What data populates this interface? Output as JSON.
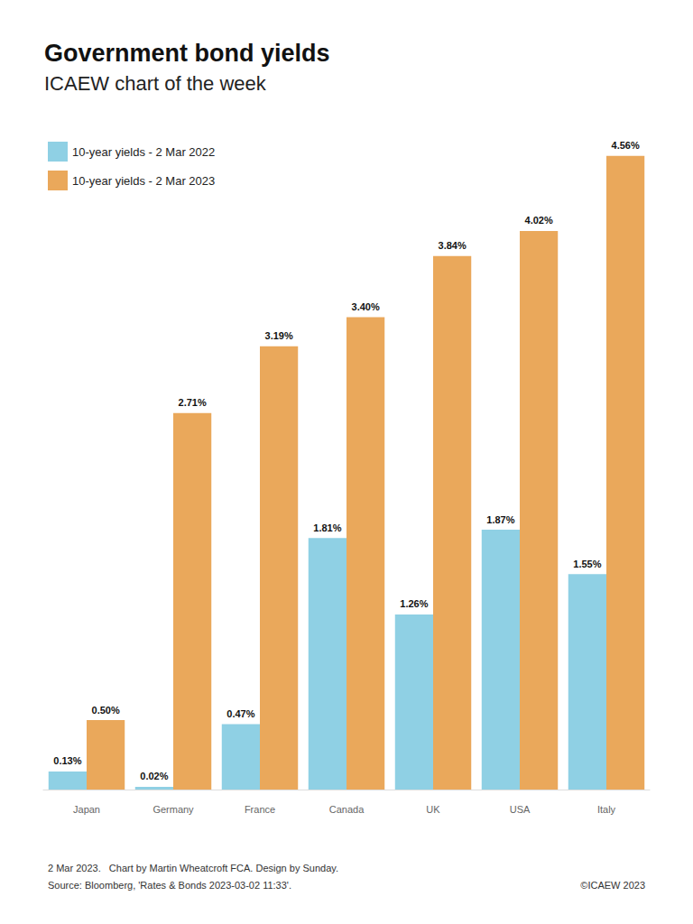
{
  "chart_data": {
    "type": "bar",
    "title": "Government bond yields",
    "subtitle": "ICAEW chart of the week",
    "categories": [
      "Japan",
      "Germany",
      "France",
      "Canada",
      "UK",
      "USA",
      "Italy"
    ],
    "series": [
      {
        "name": "10-year yields - 2 Mar 2022",
        "color": "#8fd0e4",
        "values": [
          0.13,
          0.02,
          0.47,
          1.81,
          1.26,
          1.87,
          1.55
        ],
        "value_labels": [
          "0.13%",
          "0.02%",
          "0.47%",
          "1.81%",
          "1.26%",
          "1.87%",
          "1.55%"
        ]
      },
      {
        "name": "10-year yields - 2 Mar 2023",
        "color": "#eaa85b",
        "values": [
          0.5,
          2.71,
          3.19,
          3.4,
          3.84,
          4.02,
          4.56
        ],
        "value_labels": [
          "0.50%",
          "2.71%",
          "3.19%",
          "3.40%",
          "3.84%",
          "4.02%",
          "4.56%"
        ]
      }
    ],
    "ylim": [
      0,
      5
    ],
    "grid": false,
    "legend": "top-left",
    "data_labels": true,
    "tick_labels": "x",
    "footnotes": [
      "2 Mar 2023.   Chart by Martin Wheatcroft FCA. Design by Sunday.",
      "Source: Bloomberg, 'Rates & Bonds 2023-03-02 11:33'."
    ],
    "copyright": "©ICAEW 2023"
  }
}
